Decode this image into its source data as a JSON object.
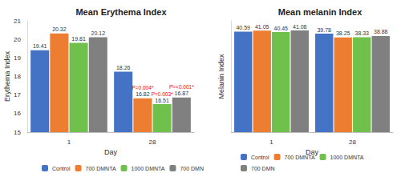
{
  "chart_data": [
    {
      "type": "bar",
      "title": "Mean Erythema Index",
      "x_label": "Day",
      "y_label": "Erythema Index",
      "categories": [
        "1",
        "28"
      ],
      "series": [
        {
          "name": "Control",
          "color": "#4472c4",
          "values": [
            19.41,
            18.26
          ]
        },
        {
          "name": "700 DMNTA",
          "color": "#ed7d31",
          "values": [
            20.32,
            16.82
          ]
        },
        {
          "name": "1000 DMNTA",
          "color": "#70c04c",
          "values": [
            19.81,
            16.51
          ]
        },
        {
          "name": "700 DMN",
          "color": "#808080",
          "values": [
            20.12,
            16.87
          ]
        }
      ],
      "ylim": [
        15,
        21
      ],
      "yticks": [
        15,
        16,
        17,
        18,
        19,
        20,
        21
      ],
      "grid": false,
      "data_labels": true,
      "legend": "bottom",
      "annotations": [
        {
          "text": "P=0.004*",
          "series": "700 DMNTA",
          "category": "28",
          "color": "#ff0000"
        },
        {
          "text": "P=0.003*",
          "series": "1000 DMNTA",
          "category": "28",
          "color": "#ff0000"
        },
        {
          "text": "P=<0.001*",
          "series": "700 DMN",
          "category": "28",
          "color": "#ff0000"
        }
      ]
    },
    {
      "type": "bar",
      "title": "Mean melanin Index",
      "x_label": "Day",
      "y_label": "Melanin Index",
      "categories": [
        "1",
        "28"
      ],
      "series": [
        {
          "name": "Control",
          "color": "#4472c4",
          "values": [
            40.59,
            39.78
          ]
        },
        {
          "name": "700 DMNTA",
          "color": "#ed7d31",
          "values": [
            41.05,
            38.25
          ]
        },
        {
          "name": "1000 DMNTA",
          "color": "#70c04c",
          "values": [
            40.45,
            38.33
          ]
        },
        {
          "name": "700 DMN",
          "color": "#808080",
          "values": [
            41.08,
            38.88
          ]
        }
      ],
      "ylim": [
        0,
        45
      ],
      "tick_labels": "x",
      "grid": false,
      "data_labels": true,
      "legend": "bottom"
    }
  ]
}
